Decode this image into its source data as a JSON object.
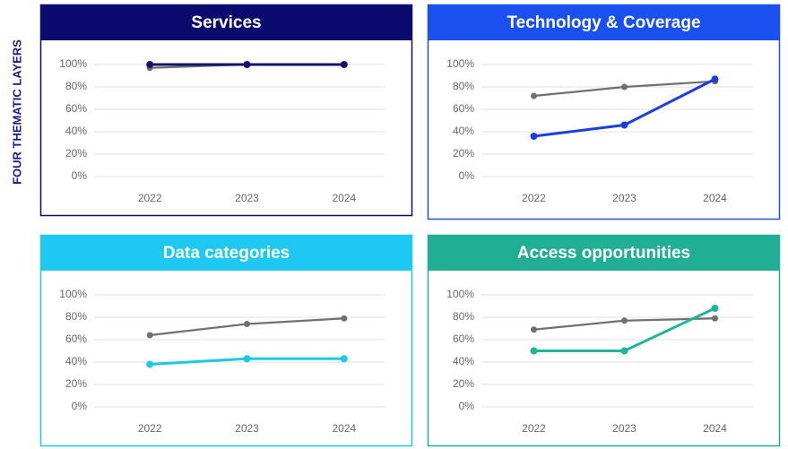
{
  "side_label": "FOUR THEMATIC LAYERS",
  "chart_data": [
    {
      "type": "line",
      "title": "Services",
      "header_color": "#0b0b6f",
      "categories": [
        "2022",
        "2023",
        "2024"
      ],
      "series": [
        {
          "color": "#707070",
          "values": [
            97,
            100,
            100
          ]
        },
        {
          "color": "#14146e",
          "values": [
            100,
            100,
            100
          ]
        }
      ],
      "ylim": [
        0,
        100
      ],
      "yticks": [
        {
          "value": 0,
          "label": "0%"
        },
        {
          "value": 20,
          "label": "20%"
        },
        {
          "value": 40,
          "label": "40%"
        },
        {
          "value": 60,
          "label": "60%"
        },
        {
          "value": 80,
          "label": "80%"
        },
        {
          "value": 100,
          "label": "100%"
        }
      ],
      "grid": true
    },
    {
      "type": "line",
      "title": "Technology & Coverage",
      "header_color": "#1a4ff0",
      "categories": [
        "2022",
        "2023",
        "2024"
      ],
      "series": [
        {
          "color": "#707070",
          "values": [
            72,
            80,
            85
          ]
        },
        {
          "color": "#1a3fe0",
          "values": [
            36,
            46,
            87
          ]
        }
      ],
      "ylim": [
        0,
        100
      ],
      "yticks": [
        {
          "value": 0,
          "label": "0%"
        },
        {
          "value": 20,
          "label": "20%"
        },
        {
          "value": 40,
          "label": "40%"
        },
        {
          "value": 60,
          "label": "60%"
        },
        {
          "value": 80,
          "label": "80%"
        },
        {
          "value": 100,
          "label": "100%"
        }
      ],
      "grid": true
    },
    {
      "type": "line",
      "title": "Data categories",
      "header_color": "#1ec8f0",
      "categories": [
        "2022",
        "2023",
        "2024"
      ],
      "series": [
        {
          "color": "#707070",
          "values": [
            64,
            74,
            79
          ]
        },
        {
          "color": "#1ec8e8",
          "values": [
            38,
            43,
            43
          ]
        }
      ],
      "ylim": [
        0,
        100
      ],
      "yticks": [
        {
          "value": 0,
          "label": "0%"
        },
        {
          "value": 20,
          "label": "20%"
        },
        {
          "value": 40,
          "label": "40%"
        },
        {
          "value": 60,
          "label": "60%"
        },
        {
          "value": 80,
          "label": "80%"
        },
        {
          "value": 100,
          "label": "100%"
        }
      ],
      "grid": true
    },
    {
      "type": "line",
      "title": "Access opportunities",
      "header_color": "#20ae95",
      "categories": [
        "2022",
        "2023",
        "2024"
      ],
      "series": [
        {
          "color": "#707070",
          "values": [
            69,
            77,
            79
          ]
        },
        {
          "color": "#20b49a",
          "values": [
            50,
            50,
            88
          ]
        }
      ],
      "ylim": [
        0,
        100
      ],
      "yticks": [
        {
          "value": 0,
          "label": "0%"
        },
        {
          "value": 20,
          "label": "20%"
        },
        {
          "value": 40,
          "label": "40%"
        },
        {
          "value": 60,
          "label": "60%"
        },
        {
          "value": 80,
          "label": "80%"
        },
        {
          "value": 100,
          "label": "100%"
        }
      ],
      "grid": true
    }
  ]
}
